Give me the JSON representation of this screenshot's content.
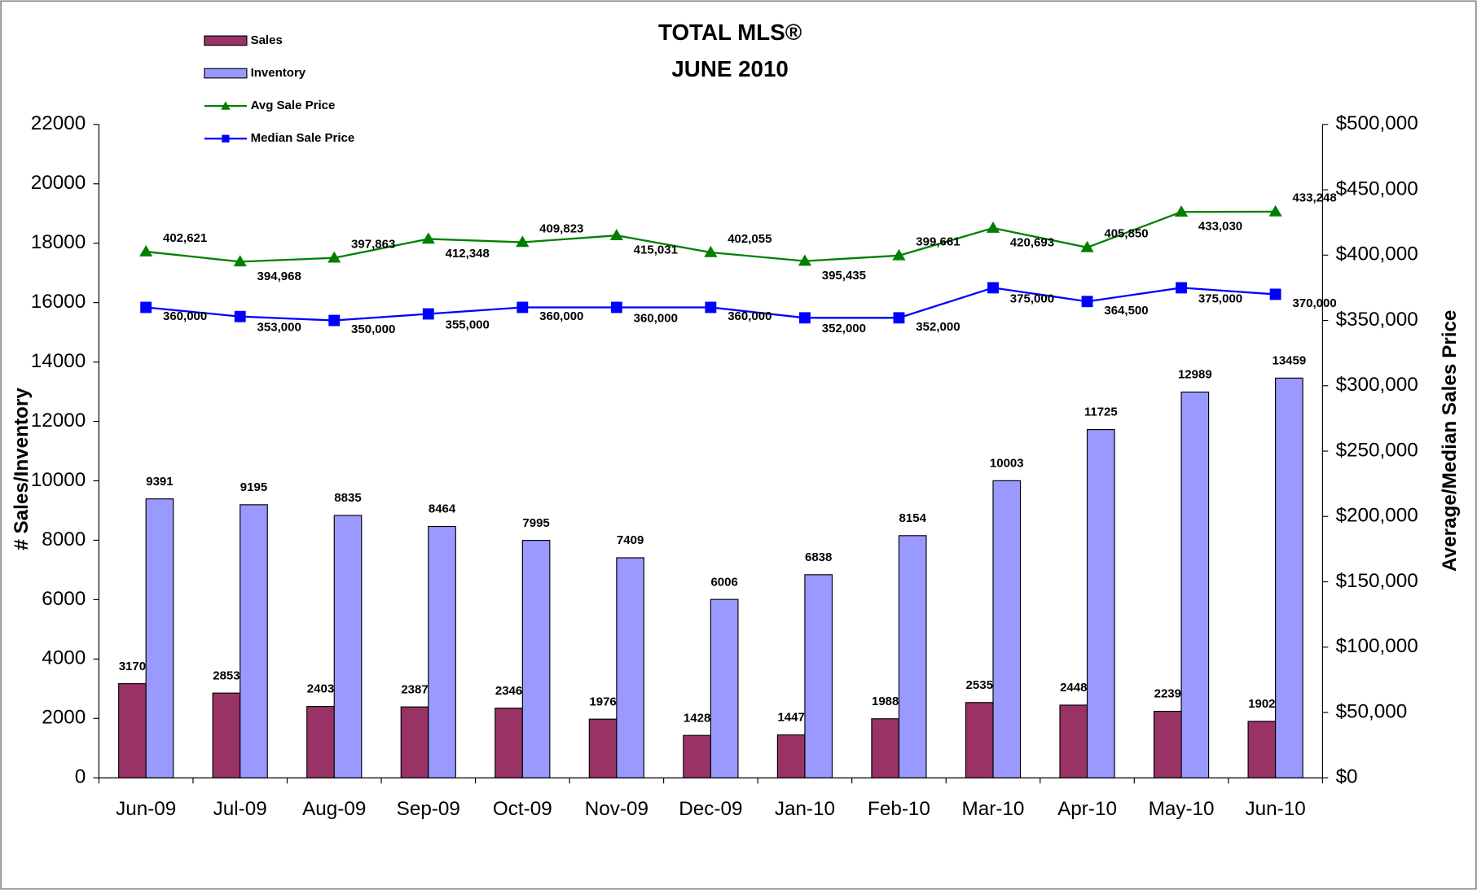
{
  "chart_data": {
    "type": "bar-line",
    "title": [
      "TOTAL MLS®",
      "JUNE 2010"
    ],
    "ylabel": "# Sales/Inventory",
    "y2label": "Average/Median Sales Price",
    "categories": [
      "Jun-09",
      "Jul-09",
      "Aug-09",
      "Sep-09",
      "Oct-09",
      "Nov-09",
      "Dec-09",
      "Jan-10",
      "Feb-10",
      "Mar-10",
      "Apr-10",
      "May-10",
      "Jun-10"
    ],
    "series": [
      {
        "name": "Sales",
        "type": "bar",
        "color": "#993366",
        "values": [
          3170,
          2853,
          2403,
          2387,
          2346,
          1976,
          1428,
          1447,
          1988,
          2535,
          2448,
          2239,
          1902
        ]
      },
      {
        "name": "Inventory",
        "type": "bar",
        "color": "#9999ff",
        "values": [
          9391,
          9195,
          8835,
          8464,
          7995,
          7409,
          6006,
          6838,
          8154,
          10003,
          11725,
          12989,
          13459
        ]
      },
      {
        "name": "Avg Sale Price",
        "type": "line",
        "marker": "triangle",
        "axis": "y2",
        "color": "#008000",
        "values": [
          402621,
          394968,
          397863,
          412348,
          409823,
          415031,
          402055,
          395435,
          399661,
          420693,
          405850,
          433030,
          433248
        ],
        "value_labels": [
          "402,621",
          "394,968",
          "397,863",
          "412,348",
          "409,823",
          "415,031",
          "402,055",
          "395,435",
          "399,661",
          "420,693",
          "405,850",
          "433,030",
          "433,248"
        ]
      },
      {
        "name": "Median Sale Price",
        "type": "line",
        "marker": "square",
        "axis": "y2",
        "color": "#0000ff",
        "values": [
          360000,
          353000,
          350000,
          355000,
          360000,
          360000,
          360000,
          352000,
          352000,
          375000,
          364500,
          375000,
          370000
        ],
        "value_labels": [
          "360,000",
          "353,000",
          "350,000",
          "355,000",
          "360,000",
          "360,000",
          "360,000",
          "352,000",
          "352,000",
          "375,000",
          "364,500",
          "375,000",
          "370,000"
        ]
      }
    ],
    "ylim": [
      0,
      22000
    ],
    "yticks": [
      0,
      2000,
      4000,
      6000,
      8000,
      10000,
      12000,
      14000,
      16000,
      18000,
      20000,
      22000
    ],
    "y2lim": [
      0,
      500000
    ],
    "y2ticks": [
      {
        "value": 0,
        "label": "$0"
      },
      {
        "value": 50000,
        "label": "$50,000"
      },
      {
        "value": 100000,
        "label": "$100,000"
      },
      {
        "value": 150000,
        "label": "$150,000"
      },
      {
        "value": 200000,
        "label": "$200,000"
      },
      {
        "value": 250000,
        "label": "$250,000"
      },
      {
        "value": 300000,
        "label": "$300,000"
      },
      {
        "value": 350000,
        "label": "$350,000"
      },
      {
        "value": 400000,
        "label": "$400,000"
      },
      {
        "value": 450000,
        "label": "$450,000"
      },
      {
        "value": 500000,
        "label": "$500,000"
      }
    ],
    "legend": "top-left",
    "grid": false
  }
}
